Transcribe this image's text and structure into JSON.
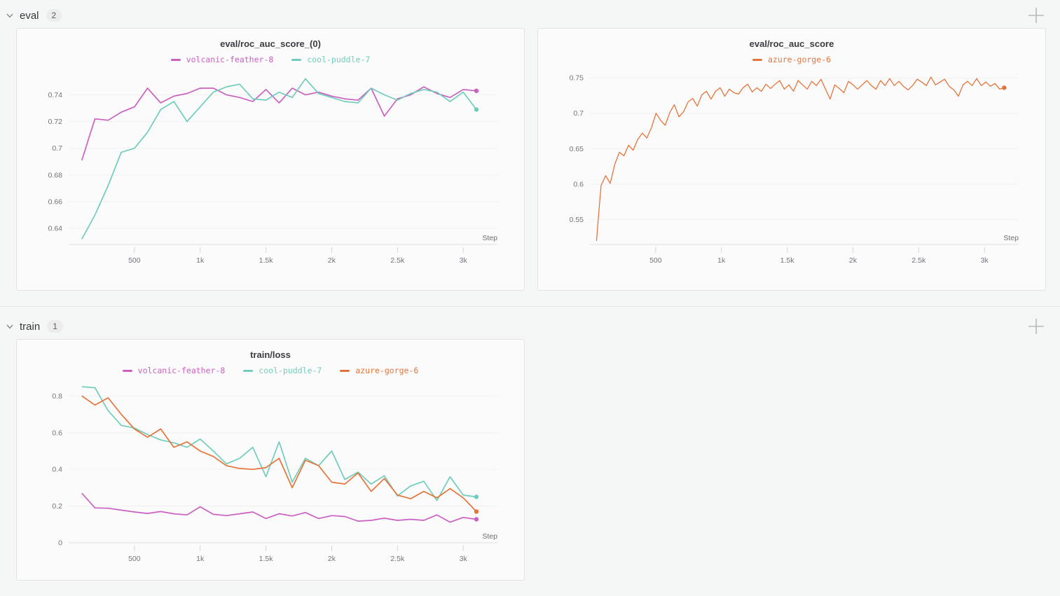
{
  "sections": [
    {
      "name": "eval",
      "count": "2"
    },
    {
      "name": "train",
      "count": "1"
    }
  ],
  "icons": {
    "collapse": "chevron-down-icon",
    "add_panel": "plus-icon"
  },
  "colors": {
    "volcanic_feather_8": "#cb60c2",
    "cool_puddle_7": "#71cdbb",
    "azure_gorge_6": "#e5743b",
    "grid": "#f1f1f1",
    "axis": "#e2e2e2",
    "tick_text": "#73737d"
  },
  "chart_data": [
    {
      "type": "line",
      "title": "eval/roc_auc_score_(0)",
      "xlabel": "Step",
      "grid": "horizontal",
      "legend_position": "top",
      "xlim": [
        0,
        3260
      ],
      "ylim": [
        0.628,
        0.757
      ],
      "xticks": [
        500,
        1000,
        1500,
        2000,
        2500,
        3000
      ],
      "xtick_labels": [
        "500",
        "1k",
        "1.5k",
        "2k",
        "2.5k",
        "3k"
      ],
      "yticks": [
        0.64,
        0.66,
        0.68,
        0.7,
        0.72,
        0.74
      ],
      "ytick_labels": [
        "0.64",
        "0.66",
        "0.68",
        "0.7",
        "0.72",
        "0.74"
      ],
      "x_range": [
        100,
        3100
      ],
      "series": [
        {
          "name": "volcanic-feather-8",
          "color": "#cb60c2",
          "end_dot": true,
          "values": [
            0.691,
            0.722,
            0.721,
            0.727,
            0.731,
            0.745,
            0.734,
            0.739,
            0.741,
            0.745,
            0.745,
            0.74,
            0.738,
            0.735,
            0.744,
            0.734,
            0.745,
            0.74,
            0.742,
            0.739,
            0.737,
            0.736,
            0.745,
            0.724,
            0.737,
            0.74,
            0.746,
            0.741,
            0.738,
            0.744,
            0.743
          ]
        },
        {
          "name": "cool-puddle-7",
          "color": "#71cdbb",
          "end_dot": true,
          "values": [
            0.632,
            0.65,
            0.672,
            0.697,
            0.7,
            0.712,
            0.729,
            0.735,
            0.72,
            0.731,
            0.742,
            0.746,
            0.748,
            0.737,
            0.736,
            0.742,
            0.738,
            0.752,
            0.741,
            0.738,
            0.735,
            0.734,
            0.745,
            0.74,
            0.736,
            0.741,
            0.744,
            0.742,
            0.735,
            0.742,
            0.729
          ]
        }
      ]
    },
    {
      "type": "line",
      "title": "eval/roc_auc_score",
      "xlabel": "Step",
      "grid": "horizontal",
      "legend_position": "top",
      "xlim": [
        0,
        3260
      ],
      "ylim": [
        0.515,
        0.758
      ],
      "xticks": [
        500,
        1000,
        1500,
        2000,
        2500,
        3000
      ],
      "xtick_labels": [
        "500",
        "1k",
        "1.5k",
        "2k",
        "2.5k",
        "3k"
      ],
      "yticks": [
        0.55,
        0.6,
        0.65,
        0.7,
        0.75
      ],
      "ytick_labels": [
        "0.55",
        "0.6",
        "0.65",
        "0.7",
        "0.75"
      ],
      "x_range": [
        50,
        3150
      ],
      "series": [
        {
          "name": "azure-gorge-6",
          "color": "#e5743b",
          "end_dot": true,
          "values": [
            0.52,
            0.598,
            0.612,
            0.601,
            0.628,
            0.645,
            0.64,
            0.655,
            0.648,
            0.663,
            0.672,
            0.665,
            0.68,
            0.7,
            0.69,
            0.683,
            0.701,
            0.712,
            0.695,
            0.702,
            0.716,
            0.721,
            0.71,
            0.726,
            0.731,
            0.72,
            0.731,
            0.736,
            0.724,
            0.734,
            0.729,
            0.727,
            0.736,
            0.741,
            0.73,
            0.736,
            0.731,
            0.741,
            0.735,
            0.741,
            0.746,
            0.734,
            0.74,
            0.731,
            0.746,
            0.74,
            0.734,
            0.745,
            0.739,
            0.748,
            0.734,
            0.72,
            0.74,
            0.735,
            0.729,
            0.745,
            0.74,
            0.734,
            0.74,
            0.746,
            0.739,
            0.734,
            0.746,
            0.739,
            0.749,
            0.739,
            0.745,
            0.738,
            0.733,
            0.739,
            0.748,
            0.744,
            0.739,
            0.751,
            0.74,
            0.744,
            0.748,
            0.738,
            0.733,
            0.724,
            0.74,
            0.745,
            0.739,
            0.749,
            0.739,
            0.744,
            0.738,
            0.742,
            0.734,
            0.736
          ]
        }
      ]
    },
    {
      "type": "line",
      "title": "train/loss",
      "xlabel": "Step",
      "grid": "horizontal",
      "legend_position": "top",
      "xlim": [
        0,
        3260
      ],
      "ylim": [
        0,
        0.87
      ],
      "xticks": [
        500,
        1000,
        1500,
        2000,
        2500,
        3000
      ],
      "xtick_labels": [
        "500",
        "1k",
        "1.5k",
        "2k",
        "2.5k",
        "3k"
      ],
      "yticks": [
        0,
        0.2,
        0.4,
        0.6,
        0.8
      ],
      "ytick_labels": [
        "0",
        "0.2",
        "0.4",
        "0.6",
        "0.8"
      ],
      "x_range": [
        100,
        3100
      ],
      "series": [
        {
          "name": "volcanic-feather-8",
          "color": "#cb60c2",
          "end_dot": true,
          "values": [
            0.27,
            0.19,
            0.188,
            0.178,
            0.168,
            0.16,
            0.17,
            0.158,
            0.152,
            0.196,
            0.155,
            0.148,
            0.158,
            0.168,
            0.132,
            0.158,
            0.146,
            0.165,
            0.132,
            0.148,
            0.143,
            0.118,
            0.122,
            0.134,
            0.122,
            0.128,
            0.122,
            0.152,
            0.112,
            0.138,
            0.128
          ]
        },
        {
          "name": "cool-puddle-7",
          "color": "#71cdbb",
          "end_dot": true,
          "values": [
            0.85,
            0.845,
            0.72,
            0.64,
            0.625,
            0.59,
            0.56,
            0.545,
            0.52,
            0.565,
            0.5,
            0.43,
            0.46,
            0.52,
            0.36,
            0.55,
            0.33,
            0.46,
            0.42,
            0.5,
            0.345,
            0.385,
            0.32,
            0.365,
            0.255,
            0.31,
            0.335,
            0.23,
            0.36,
            0.26,
            0.25
          ]
        },
        {
          "name": "azure-gorge-6",
          "color": "#e5743b",
          "end_dot": true,
          "values": [
            0.8,
            0.75,
            0.79,
            0.7,
            0.62,
            0.575,
            0.62,
            0.52,
            0.55,
            0.5,
            0.47,
            0.42,
            0.405,
            0.4,
            0.41,
            0.46,
            0.3,
            0.45,
            0.42,
            0.33,
            0.32,
            0.38,
            0.28,
            0.35,
            0.26,
            0.24,
            0.28,
            0.245,
            0.295,
            0.245,
            0.17
          ]
        }
      ]
    }
  ]
}
